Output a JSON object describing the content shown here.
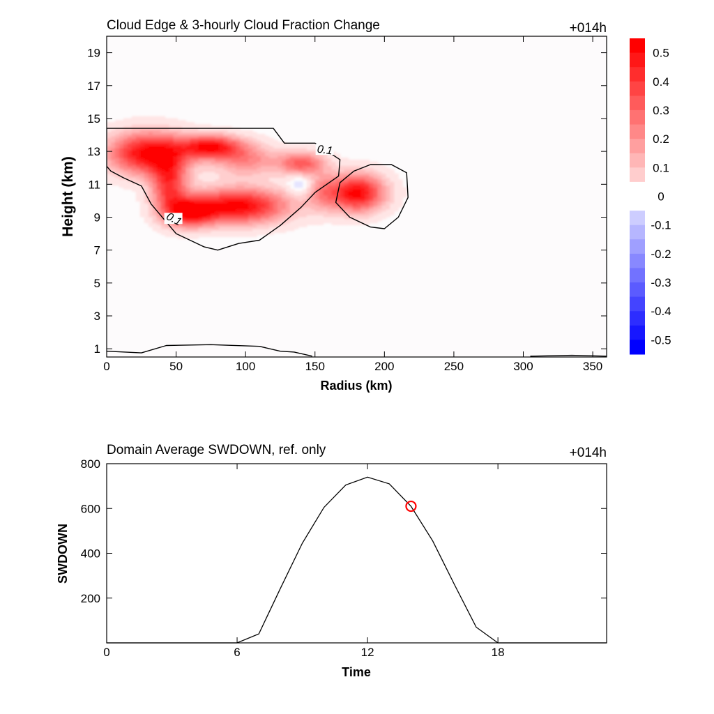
{
  "chart_data": [
    {
      "type": "heatmap",
      "title": "Cloud Edge & 3-hourly Cloud Fraction Change",
      "time_label": "+014h",
      "xlabel": "Radius (km)",
      "ylabel": "Height (km)",
      "xlim": [
        0,
        360
      ],
      "ylim": [
        0.5,
        20
      ],
      "xticks": [
        0,
        50,
        100,
        150,
        200,
        250,
        300,
        350
      ],
      "yticks": [
        1,
        3,
        5,
        7,
        9,
        11,
        13,
        15,
        17,
        19
      ],
      "colorbar": {
        "ticks": [
          "0.5",
          "0.4",
          "0.3",
          "0.2",
          "0.1",
          "0",
          "-0.1",
          "-0.2",
          "-0.3",
          "-0.4",
          "-0.5"
        ],
        "range": [
          -0.55,
          0.55
        ],
        "positive_color": "#ff0000",
        "negative_color": "#0000ff"
      },
      "blobs": [
        {
          "x": 30,
          "y": 12.9,
          "sx": 20,
          "sy": 0.9,
          "v": 0.55
        },
        {
          "x": 75,
          "y": 13.3,
          "sx": 15,
          "sy": 0.5,
          "v": 0.5
        },
        {
          "x": 45,
          "y": 11.0,
          "sx": 9,
          "sy": 1.2,
          "v": 0.4
        },
        {
          "x": 95,
          "y": 9.7,
          "sx": 25,
          "sy": 0.75,
          "v": 0.55
        },
        {
          "x": 60,
          "y": 9.3,
          "sx": 12,
          "sy": 0.6,
          "v": 0.45
        },
        {
          "x": 100,
          "y": 12.5,
          "sx": 15,
          "sy": 0.7,
          "v": 0.25
        },
        {
          "x": 140,
          "y": 12.3,
          "sx": 12,
          "sy": 0.5,
          "v": 0.35
        },
        {
          "x": 180,
          "y": 10.5,
          "sx": 14,
          "sy": 0.8,
          "v": 0.55
        },
        {
          "x": 155,
          "y": 10.6,
          "sx": 8,
          "sy": 0.8,
          "v": 0.18
        },
        {
          "x": 140,
          "y": 11.0,
          "sx": 6,
          "sy": 0.4,
          "v": -0.12
        }
      ],
      "contours": [
        {
          "label": "0.1",
          "points": [
            [
              0,
              14.4
            ],
            [
              120,
              14.4
            ],
            [
              128,
              13.5
            ],
            [
              150,
              13.5
            ],
            [
              168,
              12.5
            ],
            [
              167,
              11.5
            ],
            [
              150,
              10.5
            ],
            [
              140,
              9.6
            ],
            [
              125,
              8.5
            ],
            [
              110,
              7.6
            ],
            [
              95,
              7.4
            ],
            [
              80,
              7.0
            ],
            [
              70,
              7.2
            ],
            [
              50,
              8.0
            ],
            [
              32,
              9.8
            ],
            [
              25,
              10.9
            ],
            [
              12,
              11.4
            ],
            [
              3,
              11.8
            ],
            [
              0,
              12.1
            ]
          ]
        },
        {
          "label": "",
          "points": [
            [
              205,
              12.2
            ],
            [
              216,
              11.7
            ],
            [
              217,
              10.2
            ],
            [
              210,
              9.0
            ],
            [
              200,
              8.3
            ],
            [
              190,
              8.4
            ],
            [
              175,
              9.0
            ],
            [
              165,
              9.9
            ],
            [
              168,
              11.1
            ],
            [
              178,
              11.8
            ],
            [
              190,
              12.2
            ]
          ]
        },
        {
          "label": "",
          "points": [
            [
              0,
              0.85
            ],
            [
              25,
              0.75
            ],
            [
              43,
              1.2
            ],
            [
              75,
              1.25
            ],
            [
              110,
              1.15
            ],
            [
              125,
              0.85
            ],
            [
              135,
              0.8
            ],
            [
              148,
              0.55
            ]
          ]
        },
        {
          "label": "",
          "points": [
            [
              305,
              0.55
            ],
            [
              335,
              0.6
            ],
            [
              360,
              0.55
            ]
          ]
        }
      ],
      "contour_labels": [
        {
          "text": "0.1",
          "x": 157,
          "y": 13.0
        },
        {
          "text": "0.1",
          "x": 48,
          "y": 8.8
        }
      ]
    },
    {
      "type": "line",
      "title": "Domain Average SWDOWN, ref. only",
      "time_label": "+014h",
      "xlabel": "Time",
      "ylabel": "SWDOWN",
      "xlim": [
        0,
        23
      ],
      "ylim": [
        0,
        800
      ],
      "xticks": [
        0,
        6,
        12,
        18
      ],
      "yticks": [
        200,
        400,
        600,
        800
      ],
      "x": [
        0,
        1,
        2,
        3,
        4,
        5,
        6,
        7,
        8,
        9,
        10,
        11,
        12,
        13,
        14,
        15,
        16,
        17,
        18,
        19,
        20,
        21,
        22,
        23
      ],
      "values": [
        0,
        0,
        0,
        0,
        0,
        0,
        0,
        40,
        245,
        445,
        605,
        705,
        740,
        710,
        610,
        455,
        260,
        70,
        0,
        0,
        0,
        0,
        0,
        0
      ],
      "marker": {
        "x": 14,
        "y": 610,
        "color": "#ff0000"
      }
    }
  ]
}
